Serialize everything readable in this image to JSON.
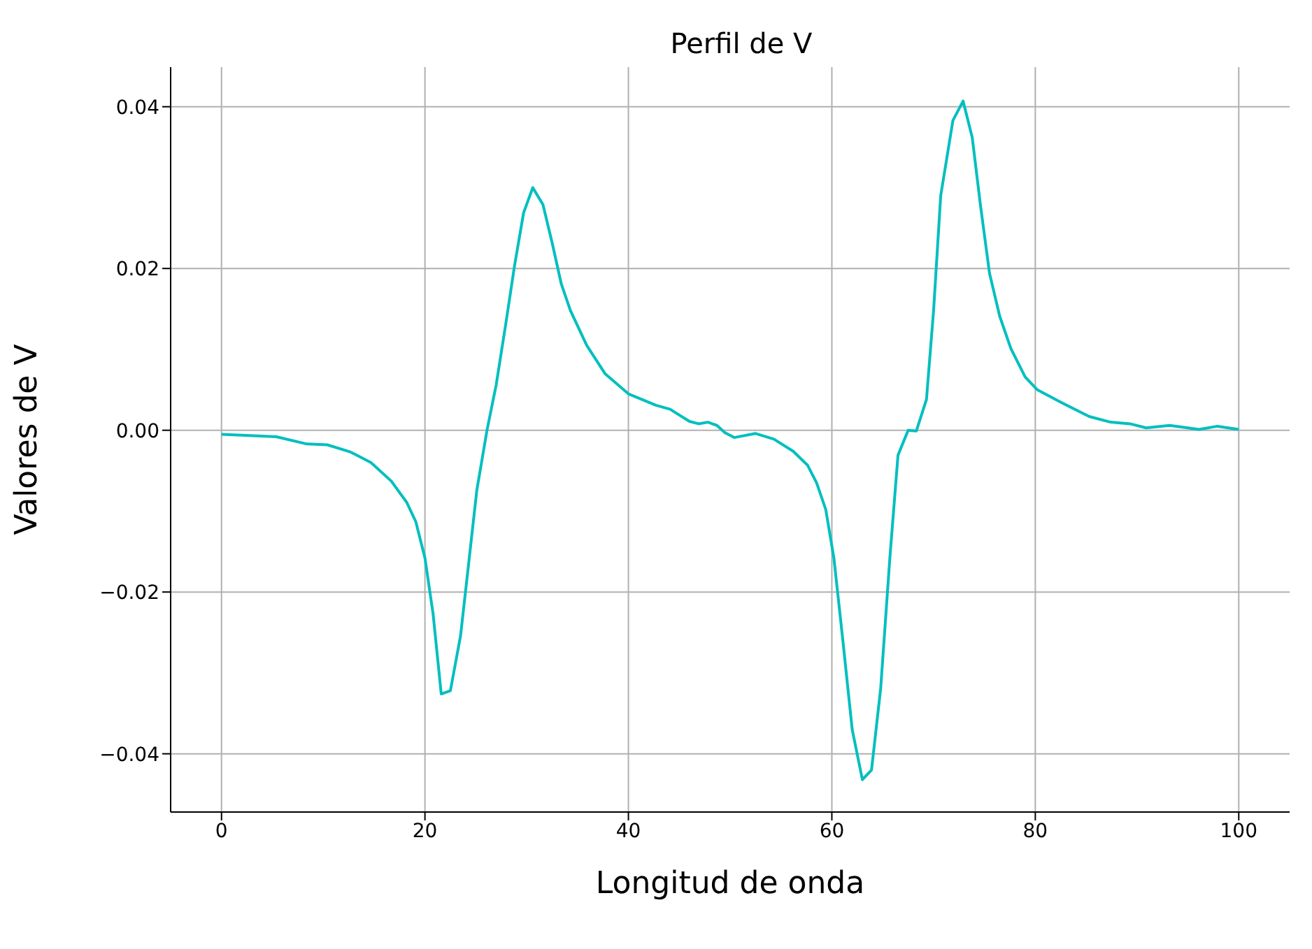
{
  "chart_data": {
    "type": "line",
    "title": "Perfil de V",
    "xlabel": "Longitud de onda",
    "ylabel": "Valores de V",
    "xlim": [
      -5,
      105
    ],
    "xticks": [
      0,
      20,
      40,
      60,
      80,
      100
    ],
    "ylim": [
      -0.0472,
      0.0449
    ],
    "yticks": [
      {
        "value": -0.04,
        "label": "−0.04"
      },
      {
        "value": -0.02,
        "label": "−0.02"
      },
      {
        "value": 0,
        "label": "0.00"
      },
      {
        "value": 0.02,
        "label": "0.02"
      },
      {
        "value": 0.04,
        "label": "0.04"
      }
    ],
    "grid": true,
    "legend": false,
    "marker": "none",
    "line_style": "solid",
    "series": [
      {
        "color": "#00bfbf",
        "x": [
          0,
          2,
          5.4,
          8.4,
          10.4,
          12.7,
          14.7,
          16.7,
          18.2,
          19.1,
          20,
          20.8,
          21.6,
          22.5,
          23.5,
          24.4,
          25.1,
          26.1,
          27,
          28,
          28.8,
          29.7,
          30.6,
          31.6,
          32.5,
          33.4,
          34.3,
          35.9,
          37.7,
          40,
          42.7,
          44.1,
          46,
          46.9,
          47.8,
          48.7,
          49.5,
          50.4,
          52.5,
          54.3,
          56.2,
          57.6,
          58.5,
          59.4,
          60.2,
          61.1,
          62,
          63,
          63.9,
          64.8,
          65.7,
          66.5,
          67.5,
          68.3,
          69.3,
          70,
          70.7,
          71.9,
          72.9,
          73.8,
          74.6,
          75.5,
          76.5,
          77.6,
          79,
          80.2,
          82.3,
          85.3,
          87.4,
          89.3,
          90.9,
          93.2,
          96.1,
          97.9,
          100
        ],
        "values": [
          -0.0005,
          -0.0006,
          -0.0008,
          -0.0017,
          -0.0018,
          -0.0027,
          -0.004,
          -0.0063,
          -0.0089,
          -0.0113,
          -0.0158,
          -0.0227,
          -0.0326,
          -0.0322,
          -0.0254,
          -0.0153,
          -0.0074,
          0,
          0.0056,
          0.0136,
          0.0203,
          0.0269,
          0.03,
          0.0279,
          0.0232,
          0.0181,
          0.0148,
          0.0105,
          0.007,
          0.0045,
          0.0031,
          0.0026,
          0.0011,
          0.0008,
          0.001,
          0.0006,
          -0.0003,
          -0.0009,
          -0.0004,
          -0.0011,
          -0.0026,
          -0.0043,
          -0.0065,
          -0.0098,
          -0.0158,
          -0.0262,
          -0.037,
          -0.0432,
          -0.042,
          -0.0319,
          -0.0158,
          -0.0031,
          0,
          -0.0001,
          0.0038,
          0.0148,
          0.029,
          0.0383,
          0.0407,
          0.0362,
          0.0279,
          0.0194,
          0.0141,
          0.0101,
          0.0066,
          0.005,
          0.0036,
          0.0017,
          0.001,
          0.0008,
          0.0003,
          0.0006,
          0.0001,
          0.0005,
          0.0001
        ]
      }
    ]
  }
}
